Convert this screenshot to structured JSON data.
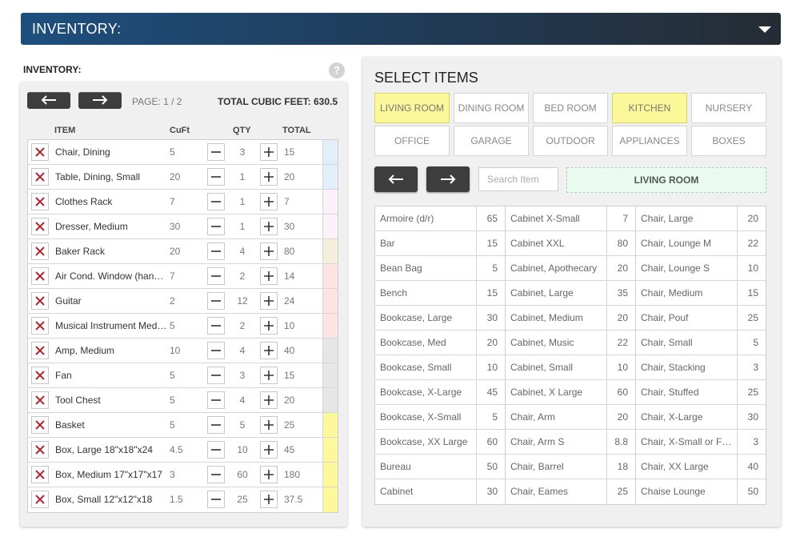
{
  "header": {
    "title": "INVENTORY:"
  },
  "inventory": {
    "label": "INVENTORY:",
    "help": "?",
    "page": "PAGE: 1 / 2",
    "total_cubic_feet": "TOTAL CUBIC FEET: 630.5",
    "columns": {
      "item": "ITEM",
      "cuft": "CuFt",
      "qty": "QTY",
      "total": "TOTAL"
    },
    "rows": [
      {
        "name": "Chair, Dining",
        "cuft": "5",
        "qty": "3",
        "total": "15",
        "color": "#e3eefb"
      },
      {
        "name": "Table, Dining, Small",
        "cuft": "20",
        "qty": "1",
        "total": "20",
        "color": "#e3eefb"
      },
      {
        "name": "Clothes Rack",
        "cuft": "7",
        "qty": "1",
        "total": "7",
        "color": "#fcf0fb"
      },
      {
        "name": "Dresser, Medium",
        "cuft": "30",
        "qty": "1",
        "total": "30",
        "color": "#fcf0fb"
      },
      {
        "name": "Baker Rack",
        "cuft": "20",
        "qty": "4",
        "total": "80",
        "color": "#f3efdc"
      },
      {
        "name": "Air Cond. Window (hand carry)",
        "cuft": "7",
        "qty": "2",
        "total": "14",
        "color": "#fde3e3"
      },
      {
        "name": "Guitar",
        "cuft": "2",
        "qty": "12",
        "total": "24",
        "color": "#fde3e3"
      },
      {
        "name": "Musical Instrument Medium",
        "cuft": "5",
        "qty": "2",
        "total": "10",
        "color": "#fde3e3"
      },
      {
        "name": "Amp, Medium",
        "cuft": "10",
        "qty": "4",
        "total": "40",
        "color": "#e6e6e6"
      },
      {
        "name": "Fan",
        "cuft": "5",
        "qty": "3",
        "total": "15",
        "color": "#e6e6e6"
      },
      {
        "name": "Tool Chest",
        "cuft": "5",
        "qty": "4",
        "total": "20",
        "color": "#e6e6e6"
      },
      {
        "name": "Basket",
        "cuft": "5",
        "qty": "5",
        "total": "25",
        "color": "#fcf89c"
      },
      {
        "name": "Box, Large 18\"x18\"x24",
        "cuft": "4.5",
        "qty": "10",
        "total": "45",
        "color": "#fcf89c"
      },
      {
        "name": "Box, Medium 17\"x17\"x17",
        "cuft": "3",
        "qty": "60",
        "total": "180",
        "color": "#fcf89c"
      },
      {
        "name": "Box, Small 12\"x12\"x18",
        "cuft": "1.5",
        "qty": "25",
        "total": "37.5",
        "color": "#fcf89c"
      }
    ]
  },
  "select": {
    "title": "SELECT ITEMS",
    "rooms": [
      {
        "label": "LIVING ROOM",
        "active": true
      },
      {
        "label": "DINING ROOM",
        "active": false
      },
      {
        "label": "BED ROOM",
        "active": false
      },
      {
        "label": "KITCHEN",
        "active": true
      },
      {
        "label": "NURSERY",
        "active": false
      },
      {
        "label": "OFFICE",
        "active": false
      },
      {
        "label": "GARAGE",
        "active": false
      },
      {
        "label": "OUTDOOR",
        "active": false
      },
      {
        "label": "APPLIANCES",
        "active": false
      },
      {
        "label": "BOXES",
        "active": false
      }
    ],
    "search_placeholder": "Search Item",
    "current_room": "LIVING ROOM",
    "catalog_columns": [
      [
        {
          "name": "Armoire (d/r)",
          "cf": "65"
        },
        {
          "name": "Bar",
          "cf": "15"
        },
        {
          "name": "Bean Bag",
          "cf": "5"
        },
        {
          "name": "Bench",
          "cf": "15"
        },
        {
          "name": "Bookcase, Large",
          "cf": "30"
        },
        {
          "name": "Bookcase, Med",
          "cf": "20"
        },
        {
          "name": "Bookcase, Small",
          "cf": "10"
        },
        {
          "name": "Bookcase, X-Large",
          "cf": "45"
        },
        {
          "name": "Bookcase, X-Small",
          "cf": "5"
        },
        {
          "name": "Bookcase, XX Large",
          "cf": "60"
        },
        {
          "name": "Bureau",
          "cf": "50"
        },
        {
          "name": "Cabinet",
          "cf": "30"
        }
      ],
      [
        {
          "name": "Cabinet X-Small",
          "cf": "7"
        },
        {
          "name": "Cabinet XXL",
          "cf": "80"
        },
        {
          "name": "Cabinet, Apothecary",
          "cf": "20"
        },
        {
          "name": "Cabinet, Large",
          "cf": "35"
        },
        {
          "name": "Cabinet, Medium",
          "cf": "20"
        },
        {
          "name": "Cabinet, Music",
          "cf": "22"
        },
        {
          "name": "Cabinet, Small",
          "cf": "10"
        },
        {
          "name": "Cabinet, X Large",
          "cf": "60"
        },
        {
          "name": "Chair, Arm",
          "cf": "20"
        },
        {
          "name": "Chair, Arm S",
          "cf": "8.8"
        },
        {
          "name": "Chair, Barrel",
          "cf": "18"
        },
        {
          "name": "Chair, Eames",
          "cf": "25"
        }
      ],
      [
        {
          "name": "Chair, Large",
          "cf": "20"
        },
        {
          "name": "Chair, Lounge M",
          "cf": "22"
        },
        {
          "name": "Chair, Lounge S",
          "cf": "10"
        },
        {
          "name": "Chair, Medium",
          "cf": "15"
        },
        {
          "name": "Chair, Pouf",
          "cf": "25"
        },
        {
          "name": "Chair, Small",
          "cf": "5"
        },
        {
          "name": "Chair, Stacking",
          "cf": "3"
        },
        {
          "name": "Chair, Stuffed",
          "cf": "25"
        },
        {
          "name": "Chair, X-Large",
          "cf": "30"
        },
        {
          "name": "Chair, X-Small or Folding",
          "cf": "3"
        },
        {
          "name": "Chair, XX Large",
          "cf": "40"
        },
        {
          "name": "Chaise Lounge",
          "cf": "50"
        }
      ]
    ]
  }
}
